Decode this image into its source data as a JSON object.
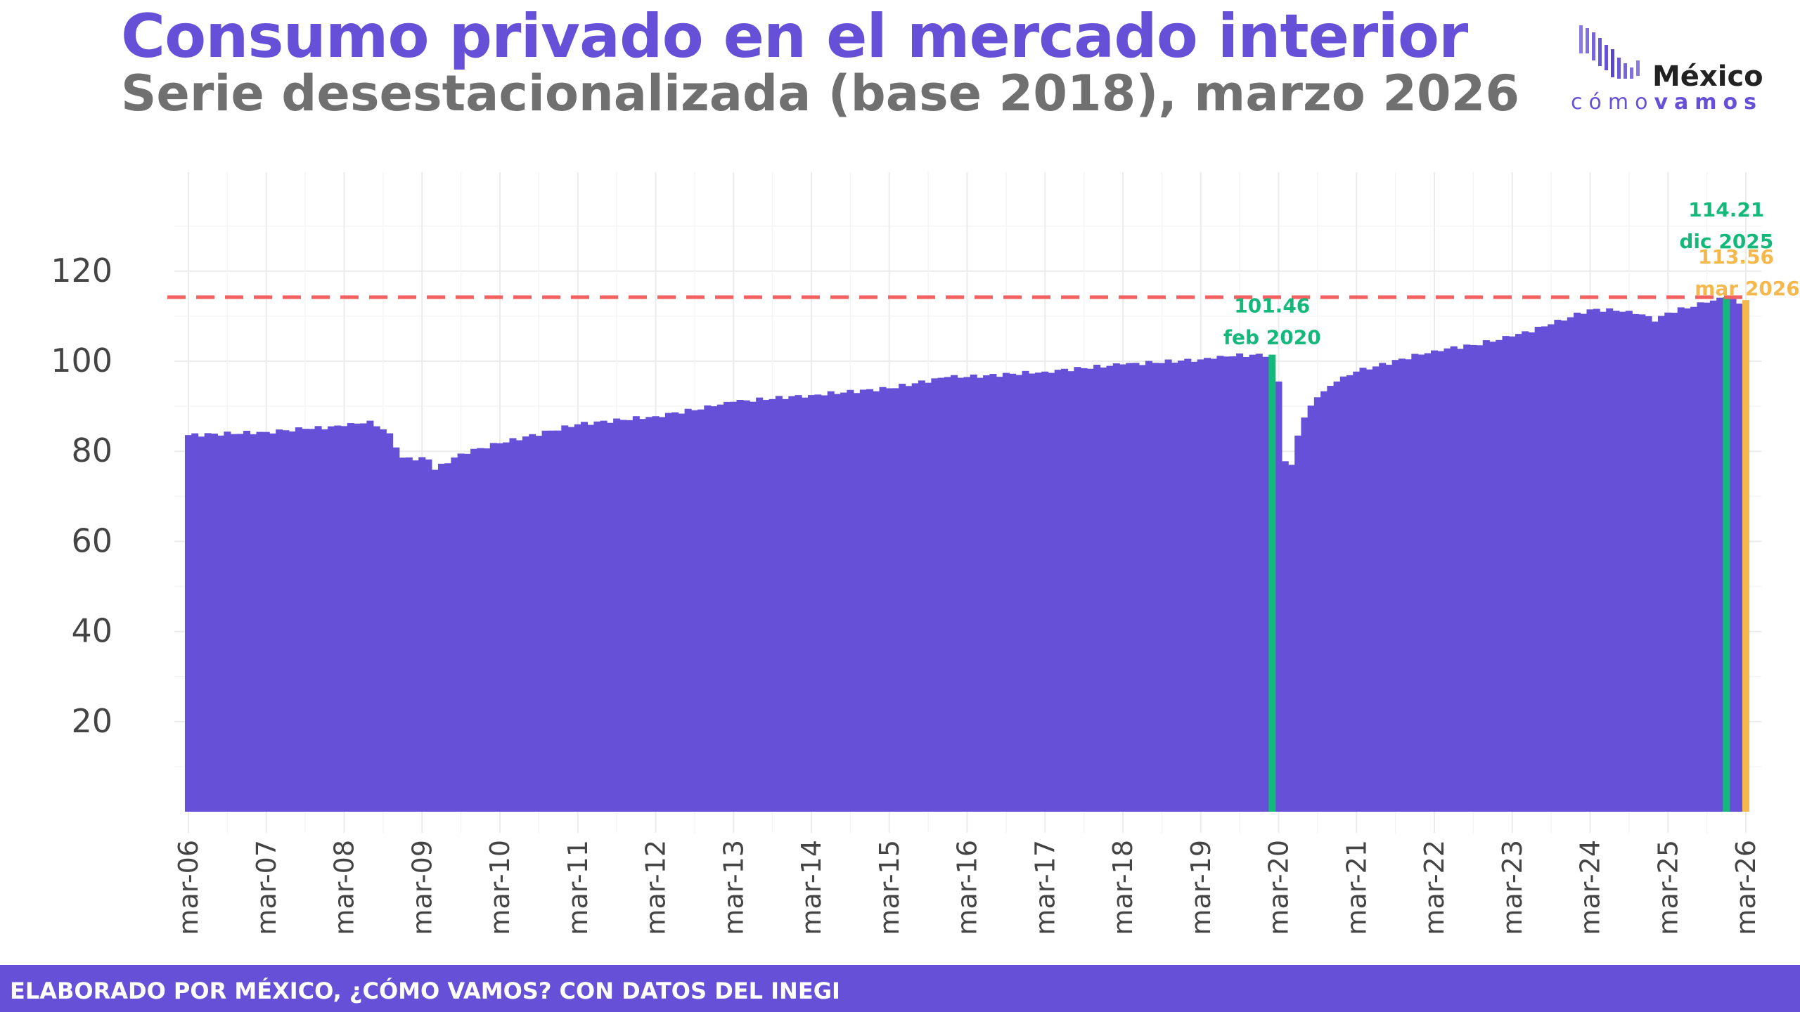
{
  "header": {
    "title": "Consumo privado en el mercado interior",
    "subtitle": "Serie desestacionalizada (base 2018), marzo 2026"
  },
  "logo": {
    "name": "México",
    "tagline_light": "cómo",
    "tagline_bold": "vamos"
  },
  "footer": {
    "text": "ELABORADO POR MÉXICO, ¿CÓMO VAMOS? CON DATOS DEL INEGI"
  },
  "colors": {
    "bars": "#6750d8",
    "highlight_green": "#14b87a",
    "highlight_orange": "#f5b84c",
    "reference_line": "#f26060",
    "title": "#6750d8"
  },
  "chart_data": {
    "type": "bar",
    "x_start": "2006-03",
    "x_end": "2026-03",
    "x_tick_labels": [
      "mar-06",
      "mar-07",
      "mar-08",
      "mar-09",
      "mar-10",
      "mar-11",
      "mar-12",
      "mar-13",
      "mar-14",
      "mar-15",
      "mar-16",
      "mar-17",
      "mar-18",
      "mar-19",
      "mar-20",
      "mar-21",
      "mar-22",
      "mar-23",
      "mar-24",
      "mar-25",
      "mar-26"
    ],
    "y_ticks": [
      20,
      40,
      60,
      80,
      100,
      120
    ],
    "ylim": [
      0,
      130
    ],
    "grid": true,
    "reference_line": {
      "value": 114.21,
      "style": "dashed"
    },
    "anchors": [
      [
        "2006-03",
        83.6
      ],
      [
        "2007-03",
        84.3
      ],
      [
        "2007-09",
        85.0
      ],
      [
        "2008-03",
        85.6
      ],
      [
        "2008-07",
        86.8
      ],
      [
        "2008-10",
        84.0
      ],
      [
        "2008-12",
        78.6
      ],
      [
        "2009-04",
        78.2
      ],
      [
        "2009-05",
        75.9
      ],
      [
        "2009-09",
        79.5
      ],
      [
        "2010-03",
        81.8
      ],
      [
        "2011-03",
        86.0
      ],
      [
        "2012-03",
        87.8
      ],
      [
        "2012-12",
        90.0
      ],
      [
        "2013-03",
        91.0
      ],
      [
        "2014-03",
        92.5
      ],
      [
        "2015-03",
        94.0
      ],
      [
        "2015-12",
        96.5
      ],
      [
        "2016-03",
        96.5
      ],
      [
        "2017-03",
        97.7
      ],
      [
        "2018-03",
        99.3
      ],
      [
        "2019-03",
        100.4
      ],
      [
        "2019-06",
        101.2
      ],
      [
        "2020-02",
        101.46
      ],
      [
        "2020-03",
        95.5
      ],
      [
        "2020-04",
        77.8
      ],
      [
        "2020-05",
        77.0
      ],
      [
        "2020-06",
        83.5
      ],
      [
        "2020-07",
        87.5
      ],
      [
        "2020-09",
        92.0
      ],
      [
        "2020-12",
        95.5
      ],
      [
        "2021-03",
        97.7
      ],
      [
        "2022-03",
        102.4
      ],
      [
        "2022-09",
        103.6
      ],
      [
        "2023-03",
        105.5
      ],
      [
        "2023-09",
        108.2
      ],
      [
        "2024-03",
        111.5
      ],
      [
        "2024-09",
        111.2
      ],
      [
        "2024-12",
        110.0
      ],
      [
        "2025-01",
        108.8
      ],
      [
        "2025-03",
        110.8
      ],
      [
        "2025-09",
        113.0
      ],
      [
        "2025-12",
        114.21
      ],
      [
        "2026-02",
        112.8
      ],
      [
        "2026-03",
        113.56
      ]
    ],
    "annotations": [
      {
        "date": "2020-02",
        "value": "101.46",
        "label": "feb 2020",
        "color": "green"
      },
      {
        "date": "2025-12",
        "value": "114.21",
        "label": "dic 2025",
        "color": "green"
      },
      {
        "date": "2026-03",
        "value": "113.56",
        "label": "mar 2026",
        "color": "orange"
      }
    ]
  }
}
